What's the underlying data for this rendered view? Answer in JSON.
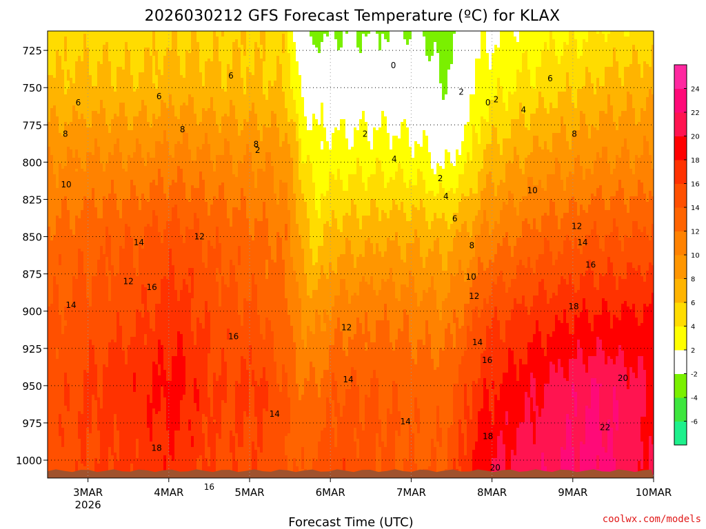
{
  "chart_data": {
    "type": "heatmap",
    "title": "2026030212 GFS Forecast Temperature (ºC) for KLAX",
    "xlabel": "Forecast Time (UTC)",
    "ylabel": "",
    "credit": "coolwx.com/models",
    "x_ticks": [
      {
        "label": "3MAR",
        "sub": "2026",
        "day": 1
      },
      {
        "label": "4MAR",
        "day": 2
      },
      {
        "label": "5MAR",
        "day": 3
      },
      {
        "label": "6MAR",
        "day": 4
      },
      {
        "label": "7MAR",
        "day": 5
      },
      {
        "label": "8MAR",
        "day": 6
      },
      {
        "label": "9MAR",
        "day": 7
      },
      {
        "label": "10MAR",
        "day": 8
      }
    ],
    "xlim": [
      0.5,
      8
    ],
    "y_ticks": [
      725,
      750,
      775,
      800,
      825,
      850,
      875,
      900,
      925,
      950,
      975,
      1000
    ],
    "ylim": [
      712,
      1012
    ],
    "ground_level_hPa": 1008,
    "colorbar": {
      "levels": [
        -8,
        -6,
        -4,
        -2,
        2,
        4,
        6,
        8,
        10,
        12,
        14,
        16,
        18,
        20,
        22,
        24,
        26
      ],
      "labels": [
        "-6",
        "-4",
        "-2",
        "2",
        "4",
        "6",
        "8",
        "10",
        "12",
        "14",
        "16",
        "18",
        "20",
        "22",
        "24"
      ],
      "colors": [
        "#1ef08c",
        "#3ee63e",
        "#7af000",
        "#ffffff",
        "#ffff00",
        "#ffdc00",
        "#ffb400",
        "#ff9600",
        "#ff8200",
        "#ff6400",
        "#ff5000",
        "#ff3200",
        "#ff0000",
        "#ff1450",
        "#ff0a78",
        "#ff28a0"
      ]
    },
    "temp_profiles": [
      {
        "day": 0.5,
        "p": [
          712,
          750,
          800,
          850,
          900,
          950,
          1008
        ],
        "t": [
          5,
          6.5,
          10,
          12.5,
          14,
          15,
          15
        ]
      },
      {
        "day": 1.6,
        "p": [
          712,
          750,
          800,
          850,
          900,
          950,
          1008
        ],
        "t": [
          5,
          6.5,
          10.5,
          14,
          15.5,
          17.5,
          16.5
        ]
      },
      {
        "day": 2.1,
        "p": [
          712,
          750,
          800,
          850,
          900,
          950,
          1008
        ],
        "t": [
          5.5,
          7,
          11,
          15,
          17,
          19,
          17.5
        ]
      },
      {
        "day": 2.6,
        "p": [
          712,
          750,
          800,
          850,
          900,
          950,
          1008
        ],
        "t": [
          5.5,
          6.5,
          10.5,
          13.5,
          15,
          16,
          15.5
        ]
      },
      {
        "day": 3.1,
        "p": [
          712,
          750,
          800,
          850,
          900,
          950,
          1008
        ],
        "t": [
          5.5,
          6.5,
          10,
          12.5,
          14,
          16.5,
          15.5
        ]
      },
      {
        "day": 3.45,
        "p": [
          712,
          750,
          800,
          850,
          900,
          950,
          1008
        ],
        "t": [
          5,
          6,
          9.5,
          11.5,
          12.5,
          14,
          14.5
        ]
      },
      {
        "day": 3.65,
        "p": [
          712,
          750,
          800,
          850,
          900,
          950,
          1008
        ],
        "t": [
          -1,
          1,
          5,
          7.5,
          10,
          12,
          13.5
        ]
      },
      {
        "day": 3.8,
        "p": [
          712,
          750,
          800,
          850,
          900,
          950,
          1008
        ],
        "t": [
          -3,
          1,
          3,
          5,
          9,
          12,
          14.5
        ]
      },
      {
        "day": 4.1,
        "p": [
          712,
          750,
          800,
          850,
          900,
          950,
          1008
        ],
        "t": [
          -2,
          0,
          3,
          7,
          11,
          14,
          15.5
        ]
      },
      {
        "day": 4.6,
        "p": [
          712,
          750,
          800,
          850,
          900,
          950,
          1008
        ],
        "t": [
          -2,
          0.5,
          3.5,
          7.5,
          11.5,
          14,
          14.5
        ]
      },
      {
        "day": 5.1,
        "p": [
          712,
          750,
          800,
          850,
          900,
          950,
          1008
        ],
        "t": [
          -2,
          0,
          3,
          7.5,
          11,
          13,
          14
        ]
      },
      {
        "day": 5.4,
        "p": [
          712,
          750,
          800,
          850,
          900,
          950,
          1008
        ],
        "t": [
          -3.5,
          -2,
          1.5,
          7,
          10.5,
          13,
          14
        ]
      },
      {
        "day": 5.75,
        "p": [
          712,
          750,
          800,
          850,
          900,
          950,
          1008
        ],
        "t": [
          0.5,
          1.5,
          4,
          9,
          13,
          16,
          18
        ]
      },
      {
        "day": 5.9,
        "p": [
          712,
          750,
          800,
          850,
          900,
          950,
          1008
        ],
        "t": [
          1.5,
          3,
          6.5,
          10.5,
          15,
          17.5,
          20
        ]
      },
      {
        "day": 6.6,
        "p": [
          712,
          750,
          800,
          850,
          900,
          950,
          1008
        ],
        "t": [
          3,
          5,
          9,
          13,
          17,
          20,
          21.5
        ]
      },
      {
        "day": 7.3,
        "p": [
          712,
          750,
          800,
          850,
          900,
          950,
          1008
        ],
        "t": [
          4,
          6.5,
          10,
          14,
          18,
          22,
          23
        ]
      },
      {
        "day": 8.0,
        "p": [
          712,
          750,
          800,
          850,
          900,
          950,
          1008
        ],
        "t": [
          5,
          7.5,
          10.5,
          14.5,
          18,
          20,
          19.5
        ]
      }
    ],
    "contour_labels": [
      {
        "text": "0",
        "day": 4.78,
        "p": 735
      },
      {
        "text": "2",
        "day": 5.62,
        "p": 753
      },
      {
        "text": "0",
        "day": 5.95,
        "p": 760
      },
      {
        "text": "2",
        "day": 6.05,
        "p": 758
      },
      {
        "text": "4",
        "day": 6.39,
        "p": 765
      },
      {
        "text": "6",
        "day": 6.72,
        "p": 744
      },
      {
        "text": "8",
        "day": 7.02,
        "p": 781
      },
      {
        "text": "6",
        "day": 2.77,
        "p": 742
      },
      {
        "text": "6",
        "day": 1.88,
        "p": 756
      },
      {
        "text": "6",
        "day": 0.88,
        "p": 760
      },
      {
        "text": "8",
        "day": 0.72,
        "p": 781
      },
      {
        "text": "8",
        "day": 2.17,
        "p": 778
      },
      {
        "text": "8",
        "day": 3.08,
        "p": 788
      },
      {
        "text": "2",
        "day": 3.1,
        "p": 792
      },
      {
        "text": "2",
        "day": 4.43,
        "p": 781
      },
      {
        "text": "2",
        "day": 5.36,
        "p": 811
      },
      {
        "text": "4",
        "day": 4.79,
        "p": 798
      },
      {
        "text": "4",
        "day": 5.43,
        "p": 823
      },
      {
        "text": "6",
        "day": 5.54,
        "p": 838
      },
      {
        "text": "8",
        "day": 5.75,
        "p": 856
      },
      {
        "text": "10",
        "day": 6.5,
        "p": 819
      },
      {
        "text": "10",
        "day": 0.73,
        "p": 815
      },
      {
        "text": "10",
        "day": 5.74,
        "p": 877
      },
      {
        "text": "12",
        "day": 7.05,
        "p": 843
      },
      {
        "text": "12",
        "day": 2.38,
        "p": 850
      },
      {
        "text": "12",
        "day": 1.5,
        "p": 880
      },
      {
        "text": "12",
        "day": 4.2,
        "p": 911
      },
      {
        "text": "12",
        "day": 5.78,
        "p": 890
      },
      {
        "text": "14",
        "day": 7.12,
        "p": 854
      },
      {
        "text": "14",
        "day": 1.63,
        "p": 854
      },
      {
        "text": "14",
        "day": 0.79,
        "p": 896
      },
      {
        "text": "14",
        "day": 5.82,
        "p": 921
      },
      {
        "text": "14",
        "day": 4.22,
        "p": 946
      },
      {
        "text": "14",
        "day": 3.31,
        "p": 969
      },
      {
        "text": "14",
        "day": 4.93,
        "p": 974
      },
      {
        "text": "16",
        "day": 7.22,
        "p": 869
      },
      {
        "text": "16",
        "day": 1.79,
        "p": 884
      },
      {
        "text": "16",
        "day": 2.8,
        "p": 917
      },
      {
        "text": "16",
        "day": 5.94,
        "p": 933
      },
      {
        "text": "16",
        "day": 2.5,
        "p": 1018
      },
      {
        "text": "18",
        "day": 7.01,
        "p": 897
      },
      {
        "text": "18",
        "day": 1.85,
        "p": 992
      },
      {
        "text": "18",
        "day": 5.95,
        "p": 984
      },
      {
        "text": "20",
        "day": 7.62,
        "p": 945
      },
      {
        "text": "20",
        "day": 6.04,
        "p": 1005
      },
      {
        "text": "22",
        "day": 7.4,
        "p": 978
      }
    ]
  }
}
